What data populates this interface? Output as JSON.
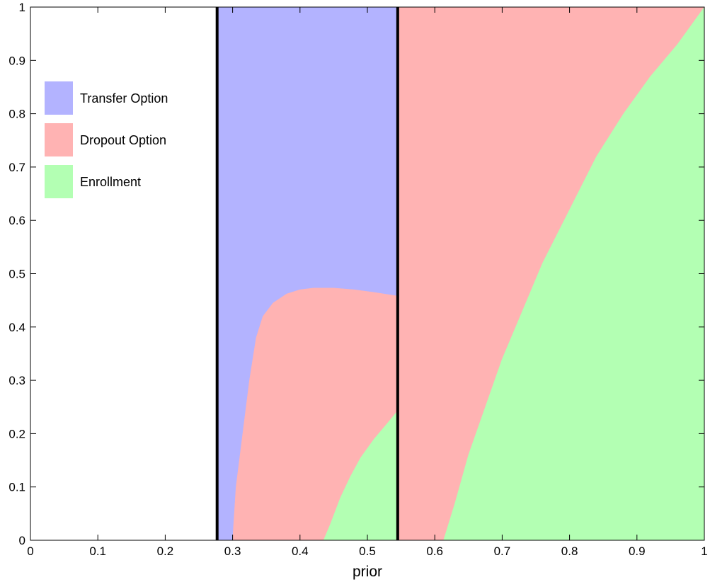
{
  "chart_data": {
    "type": "area",
    "title": "",
    "xlabel": "prior",
    "ylabel": "",
    "xlim": [
      0,
      1
    ],
    "ylim": [
      0,
      1
    ],
    "xticks": [
      "0",
      "0.1",
      "0.2",
      "0.3",
      "0.4",
      "0.5",
      "0.6",
      "0.7",
      "0.8",
      "0.9",
      "1"
    ],
    "yticks": [
      "0",
      "0.1",
      "0.2",
      "0.3",
      "0.4",
      "0.5",
      "0.6",
      "0.7",
      "0.8",
      "0.9",
      "1"
    ],
    "grid": false,
    "legend_position": "top-left",
    "legend": [
      {
        "name": "Transfer Option",
        "color": "#b3b3ff"
      },
      {
        "name": "Dropout Option",
        "color": "#ffb3b3"
      },
      {
        "name": "Enrollment",
        "color": "#b3ffb3"
      }
    ],
    "thresholds": [
      0.277,
      0.545
    ],
    "regions": [
      {
        "series": "Transfer Option",
        "color": "#b3b3ff",
        "points": [
          [
            0.277,
            0
          ],
          [
            0.277,
            1
          ],
          [
            0.545,
            1
          ],
          [
            0.545,
            0
          ]
        ]
      },
      {
        "series": "Dropout Option",
        "color": "#ffb3b3",
        "points": [
          [
            0.3,
            0
          ],
          [
            0.305,
            0.1
          ],
          [
            0.315,
            0.2
          ],
          [
            0.325,
            0.3
          ],
          [
            0.335,
            0.38
          ],
          [
            0.345,
            0.42
          ],
          [
            0.36,
            0.445
          ],
          [
            0.38,
            0.462
          ],
          [
            0.4,
            0.47
          ],
          [
            0.42,
            0.473
          ],
          [
            0.45,
            0.473
          ],
          [
            0.48,
            0.47
          ],
          [
            0.51,
            0.465
          ],
          [
            0.545,
            0.458
          ],
          [
            0.545,
            0
          ]
        ]
      },
      {
        "series": "Enrollment",
        "color": "#b3ffb3",
        "points": [
          [
            0.435,
            0
          ],
          [
            0.445,
            0.03
          ],
          [
            0.46,
            0.08
          ],
          [
            0.475,
            0.12
          ],
          [
            0.49,
            0.155
          ],
          [
            0.51,
            0.19
          ],
          [
            0.53,
            0.22
          ],
          [
            0.545,
            0.243
          ],
          [
            0.545,
            0
          ]
        ]
      },
      {
        "series": "Dropout Option",
        "color": "#ffb3b3",
        "points": [
          [
            0.545,
            0
          ],
          [
            0.545,
            1
          ],
          [
            1,
            1
          ],
          [
            1,
            0
          ]
        ]
      },
      {
        "series": "Enrollment",
        "color": "#b3ffb3",
        "points": [
          [
            0.613,
            0
          ],
          [
            0.63,
            0.07
          ],
          [
            0.65,
            0.16
          ],
          [
            0.675,
            0.25
          ],
          [
            0.7,
            0.34
          ],
          [
            0.73,
            0.43
          ],
          [
            0.76,
            0.52
          ],
          [
            0.8,
            0.62
          ],
          [
            0.84,
            0.72
          ],
          [
            0.88,
            0.8
          ],
          [
            0.92,
            0.87
          ],
          [
            0.96,
            0.93
          ],
          [
            1,
            1
          ],
          [
            1,
            0
          ]
        ]
      }
    ]
  }
}
